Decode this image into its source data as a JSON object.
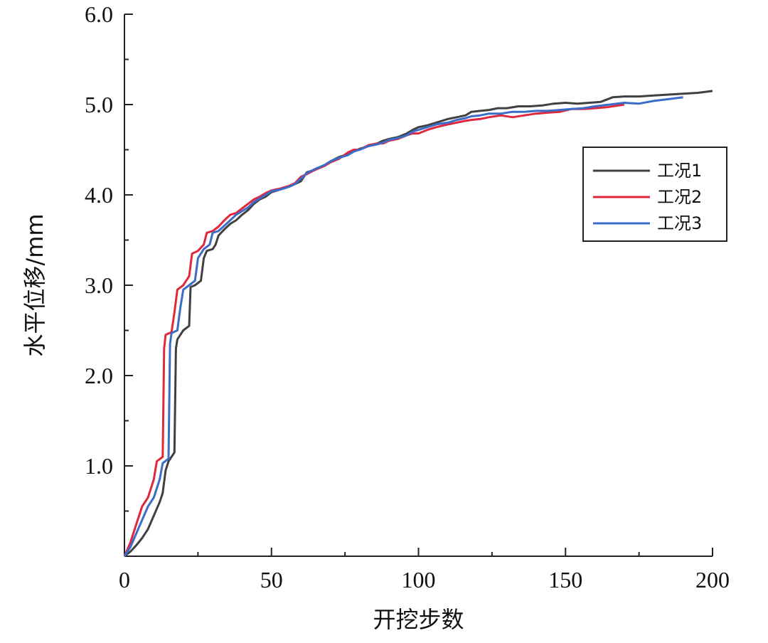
{
  "chart_data": {
    "type": "line",
    "xlabel": "开挖步数",
    "ylabel": "水平位移/mm",
    "xlim": [
      0,
      200
    ],
    "ylim": [
      0,
      6.0
    ],
    "x_ticks": [
      0,
      50,
      100,
      150,
      200
    ],
    "x_tick_labels": [
      "0",
      "50",
      "100",
      "150",
      "200"
    ],
    "y_ticks": [
      1.0,
      2.0,
      3.0,
      4.0,
      5.0,
      6.0
    ],
    "y_tick_labels": [
      "1.0",
      "2.0",
      "3.0",
      "4.0",
      "5.0",
      "6.0"
    ],
    "grid": false,
    "legend_position": "right",
    "series": [
      {
        "name": "工况1",
        "color": "#404040",
        "points": [
          [
            0,
            0
          ],
          [
            2,
            0.05
          ],
          [
            4,
            0.12
          ],
          [
            6,
            0.2
          ],
          [
            8,
            0.3
          ],
          [
            10,
            0.45
          ],
          [
            12,
            0.6
          ],
          [
            13,
            0.7
          ],
          [
            14,
            0.95
          ],
          [
            15,
            1.05
          ],
          [
            16,
            1.1
          ],
          [
            17,
            1.15
          ],
          [
            17.5,
            2.3
          ],
          [
            18,
            2.4
          ],
          [
            20,
            2.5
          ],
          [
            22,
            2.55
          ],
          [
            22.5,
            2.98
          ],
          [
            24,
            3.0
          ],
          [
            26,
            3.05
          ],
          [
            27,
            3.3
          ],
          [
            28,
            3.38
          ],
          [
            30,
            3.4
          ],
          [
            31,
            3.45
          ],
          [
            32,
            3.55
          ],
          [
            34,
            3.62
          ],
          [
            36,
            3.68
          ],
          [
            38,
            3.72
          ],
          [
            40,
            3.78
          ],
          [
            42,
            3.83
          ],
          [
            44,
            3.9
          ],
          [
            46,
            3.95
          ],
          [
            48,
            3.98
          ],
          [
            50,
            4.03
          ],
          [
            52,
            4.05
          ],
          [
            55,
            4.08
          ],
          [
            58,
            4.12
          ],
          [
            60,
            4.15
          ],
          [
            62,
            4.25
          ],
          [
            65,
            4.28
          ],
          [
            68,
            4.33
          ],
          [
            70,
            4.37
          ],
          [
            73,
            4.42
          ],
          [
            76,
            4.45
          ],
          [
            78,
            4.48
          ],
          [
            80,
            4.51
          ],
          [
            83,
            4.54
          ],
          [
            86,
            4.57
          ],
          [
            88,
            4.6
          ],
          [
            90,
            4.62
          ],
          [
            93,
            4.64
          ],
          [
            96,
            4.68
          ],
          [
            98,
            4.72
          ],
          [
            100,
            4.75
          ],
          [
            103,
            4.77
          ],
          [
            106,
            4.8
          ],
          [
            110,
            4.84
          ],
          [
            113,
            4.86
          ],
          [
            116,
            4.88
          ],
          [
            118,
            4.92
          ],
          [
            121,
            4.93
          ],
          [
            124,
            4.94
          ],
          [
            127,
            4.96
          ],
          [
            130,
            4.96
          ],
          [
            134,
            4.98
          ],
          [
            138,
            4.98
          ],
          [
            142,
            4.99
          ],
          [
            146,
            5.01
          ],
          [
            150,
            5.02
          ],
          [
            154,
            5.01
          ],
          [
            158,
            5.02
          ],
          [
            162,
            5.03
          ],
          [
            166,
            5.08
          ],
          [
            170,
            5.09
          ],
          [
            175,
            5.09
          ],
          [
            180,
            5.1
          ],
          [
            185,
            5.11
          ],
          [
            190,
            5.12
          ],
          [
            195,
            5.13
          ],
          [
            200,
            5.15
          ]
        ]
      },
      {
        "name": "工况2",
        "color": "#e0283c",
        "points": [
          [
            0,
            0
          ],
          [
            2,
            0.15
          ],
          [
            4,
            0.35
          ],
          [
            6,
            0.55
          ],
          [
            8,
            0.65
          ],
          [
            10,
            0.85
          ],
          [
            11,
            1.05
          ],
          [
            13,
            1.1
          ],
          [
            13.5,
            2.3
          ],
          [
            14,
            2.45
          ],
          [
            16,
            2.48
          ],
          [
            17,
            2.7
          ],
          [
            18,
            2.95
          ],
          [
            20,
            3.0
          ],
          [
            22,
            3.1
          ],
          [
            23,
            3.35
          ],
          [
            25,
            3.38
          ],
          [
            27,
            3.45
          ],
          [
            28,
            3.58
          ],
          [
            30,
            3.6
          ],
          [
            32,
            3.65
          ],
          [
            34,
            3.72
          ],
          [
            36,
            3.78
          ],
          [
            38,
            3.8
          ],
          [
            40,
            3.85
          ],
          [
            42,
            3.9
          ],
          [
            44,
            3.95
          ],
          [
            46,
            3.98
          ],
          [
            48,
            4.02
          ],
          [
            50,
            4.05
          ],
          [
            53,
            4.07
          ],
          [
            56,
            4.1
          ],
          [
            58,
            4.13
          ],
          [
            60,
            4.2
          ],
          [
            62,
            4.23
          ],
          [
            65,
            4.28
          ],
          [
            68,
            4.32
          ],
          [
            70,
            4.36
          ],
          [
            73,
            4.4
          ],
          [
            76,
            4.47
          ],
          [
            78,
            4.5
          ],
          [
            80,
            4.5
          ],
          [
            83,
            4.55
          ],
          [
            86,
            4.57
          ],
          [
            88,
            4.57
          ],
          [
            90,
            4.6
          ],
          [
            93,
            4.62
          ],
          [
            96,
            4.66
          ],
          [
            98,
            4.68
          ],
          [
            100,
            4.68
          ],
          [
            103,
            4.72
          ],
          [
            106,
            4.75
          ],
          [
            110,
            4.78
          ],
          [
            113,
            4.8
          ],
          [
            116,
            4.82
          ],
          [
            118,
            4.83
          ],
          [
            121,
            4.84
          ],
          [
            124,
            4.86
          ],
          [
            128,
            4.88
          ],
          [
            132,
            4.86
          ],
          [
            136,
            4.88
          ],
          [
            140,
            4.9
          ],
          [
            144,
            4.91
          ],
          [
            148,
            4.92
          ],
          [
            152,
            4.95
          ],
          [
            156,
            4.95
          ],
          [
            160,
            4.96
          ],
          [
            164,
            4.97
          ],
          [
            168,
            4.99
          ],
          [
            170,
            5.0
          ]
        ]
      },
      {
        "name": "工况3",
        "color": "#3b6cc8",
        "points": [
          [
            0,
            0
          ],
          [
            2,
            0.1
          ],
          [
            4,
            0.25
          ],
          [
            6,
            0.4
          ],
          [
            8,
            0.55
          ],
          [
            10,
            0.65
          ],
          [
            12,
            0.85
          ],
          [
            13,
            1.03
          ],
          [
            15,
            1.08
          ],
          [
            15.5,
            2.35
          ],
          [
            16,
            2.47
          ],
          [
            18,
            2.5
          ],
          [
            19,
            2.75
          ],
          [
            20,
            2.95
          ],
          [
            22,
            3.0
          ],
          [
            24,
            3.05
          ],
          [
            25,
            3.3
          ],
          [
            27,
            3.4
          ],
          [
            29,
            3.45
          ],
          [
            30,
            3.58
          ],
          [
            32,
            3.6
          ],
          [
            34,
            3.66
          ],
          [
            36,
            3.72
          ],
          [
            38,
            3.78
          ],
          [
            40,
            3.82
          ],
          [
            42,
            3.86
          ],
          [
            44,
            3.92
          ],
          [
            46,
            3.96
          ],
          [
            48,
            4.0
          ],
          [
            50,
            4.04
          ],
          [
            53,
            4.06
          ],
          [
            56,
            4.09
          ],
          [
            58,
            4.12
          ],
          [
            60,
            4.18
          ],
          [
            62,
            4.24
          ],
          [
            65,
            4.29
          ],
          [
            68,
            4.33
          ],
          [
            70,
            4.37
          ],
          [
            73,
            4.41
          ],
          [
            76,
            4.44
          ],
          [
            78,
            4.48
          ],
          [
            80,
            4.5
          ],
          [
            83,
            4.54
          ],
          [
            86,
            4.56
          ],
          [
            88,
            4.58
          ],
          [
            90,
            4.61
          ],
          [
            93,
            4.63
          ],
          [
            96,
            4.66
          ],
          [
            98,
            4.7
          ],
          [
            100,
            4.72
          ],
          [
            103,
            4.75
          ],
          [
            106,
            4.78
          ],
          [
            110,
            4.8
          ],
          [
            113,
            4.83
          ],
          [
            116,
            4.85
          ],
          [
            118,
            4.87
          ],
          [
            121,
            4.88
          ],
          [
            124,
            4.9
          ],
          [
            128,
            4.9
          ],
          [
            132,
            4.92
          ],
          [
            136,
            4.92
          ],
          [
            140,
            4.93
          ],
          [
            144,
            4.93
          ],
          [
            148,
            4.94
          ],
          [
            152,
            4.95
          ],
          [
            156,
            4.96
          ],
          [
            160,
            4.98
          ],
          [
            165,
            5.0
          ],
          [
            170,
            5.02
          ],
          [
            175,
            5.01
          ],
          [
            180,
            5.04
          ],
          [
            185,
            5.06
          ],
          [
            190,
            5.08
          ]
        ]
      }
    ]
  }
}
